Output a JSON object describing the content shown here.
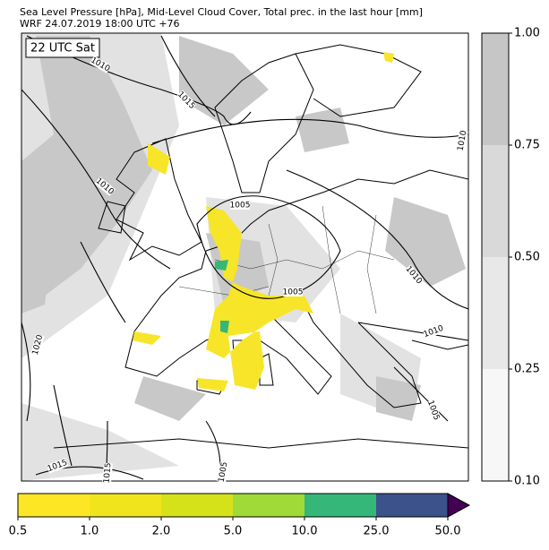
{
  "header": {
    "title": "Sea Level Pressure [hPa], Mid-Level Cloud Cover, Total prec. in the last hour [mm]",
    "subtitle": "WRF 24.07.2019 18:00 UTC +76"
  },
  "map": {
    "time_label": "22 UTC Sat",
    "isobar_labels": [
      "1010",
      "1015",
      "1010",
      "1010",
      "1005",
      "1010",
      "1005",
      "1010",
      "1020",
      "1005",
      "1015",
      "1015",
      "1005"
    ]
  },
  "cloud_colorbar": {
    "ticks": [
      "0.10",
      "0.25",
      "0.50",
      "0.75",
      "1.00"
    ],
    "colors": [
      "#f7f7f7",
      "#e8e8e8",
      "#d9d9d9",
      "#c6c6c6"
    ]
  },
  "precip_colorbar": {
    "ticks": [
      "0.5",
      "1.0",
      "2.0",
      "5.0",
      "10.0",
      "25.0",
      "50.0"
    ],
    "colors": [
      "#fde725",
      "#f0e51c",
      "#d5e21a",
      "#a0da39",
      "#35b779",
      "#3b528b"
    ],
    "extend_color": "#440154"
  }
}
